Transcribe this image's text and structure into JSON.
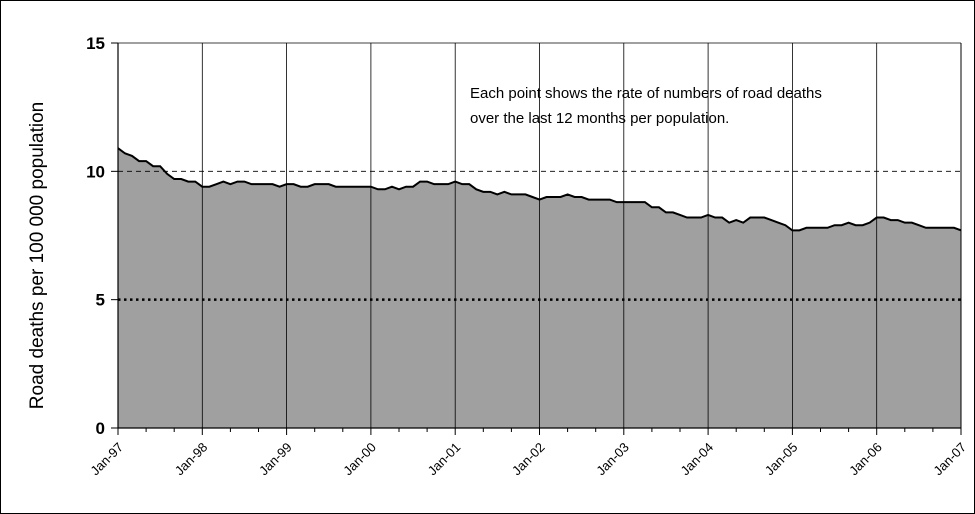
{
  "chart_data": {
    "type": "area",
    "title": "",
    "ylabel": "Road deaths  per  100 000  population",
    "xlabel": "",
    "ylim": [
      0,
      15
    ],
    "y_ticks": [
      0,
      5,
      10,
      15
    ],
    "x_tick_labels": [
      "Jan-97",
      "Jan-98",
      "Jan-99",
      "Jan-00",
      "Jan-01",
      "Jan-02",
      "Jan-03",
      "Jan-04",
      "Jan-05",
      "Jan-06",
      "Jan-07"
    ],
    "annotation": [
      "Each point shows the rate of numbers of road deaths",
      "over the last 12 months per population."
    ],
    "reference_lines": [
      {
        "y": 10,
        "style": "dashed"
      },
      {
        "y": 5,
        "style": "dotted-bold"
      }
    ],
    "grid": "vertical lines at each January",
    "colors": {
      "area_fill": "#a0a0a0",
      "area_line": "#000000"
    },
    "series": [
      {
        "x_start": "Jan-97",
        "x_step": "1 month",
        "values": [
          10.9,
          10.7,
          10.6,
          10.4,
          10.4,
          10.2,
          10.2,
          9.9,
          9.7,
          9.7,
          9.6,
          9.6,
          9.4,
          9.4,
          9.5,
          9.6,
          9.5,
          9.6,
          9.6,
          9.5,
          9.5,
          9.5,
          9.5,
          9.4,
          9.5,
          9.5,
          9.4,
          9.4,
          9.5,
          9.5,
          9.5,
          9.4,
          9.4,
          9.4,
          9.4,
          9.4,
          9.4,
          9.3,
          9.3,
          9.4,
          9.3,
          9.4,
          9.4,
          9.6,
          9.6,
          9.5,
          9.5,
          9.5,
          9.6,
          9.5,
          9.5,
          9.3,
          9.2,
          9.2,
          9.1,
          9.2,
          9.1,
          9.1,
          9.1,
          9.0,
          8.9,
          9.0,
          9.0,
          9.0,
          9.1,
          9.0,
          9.0,
          8.9,
          8.9,
          8.9,
          8.9,
          8.8,
          8.8,
          8.8,
          8.8,
          8.8,
          8.6,
          8.6,
          8.4,
          8.4,
          8.3,
          8.2,
          8.2,
          8.2,
          8.3,
          8.2,
          8.2,
          8.0,
          8.1,
          8.0,
          8.2,
          8.2,
          8.2,
          8.1,
          8.0,
          7.9,
          7.7,
          7.7,
          7.8,
          7.8,
          7.8,
          7.8,
          7.9,
          7.9,
          8.0,
          7.9,
          7.9,
          8.0,
          8.2,
          8.2,
          8.1,
          8.1,
          8.0,
          8.0,
          7.9,
          7.8,
          7.8,
          7.8,
          7.8,
          7.8,
          7.7
        ]
      }
    ]
  }
}
